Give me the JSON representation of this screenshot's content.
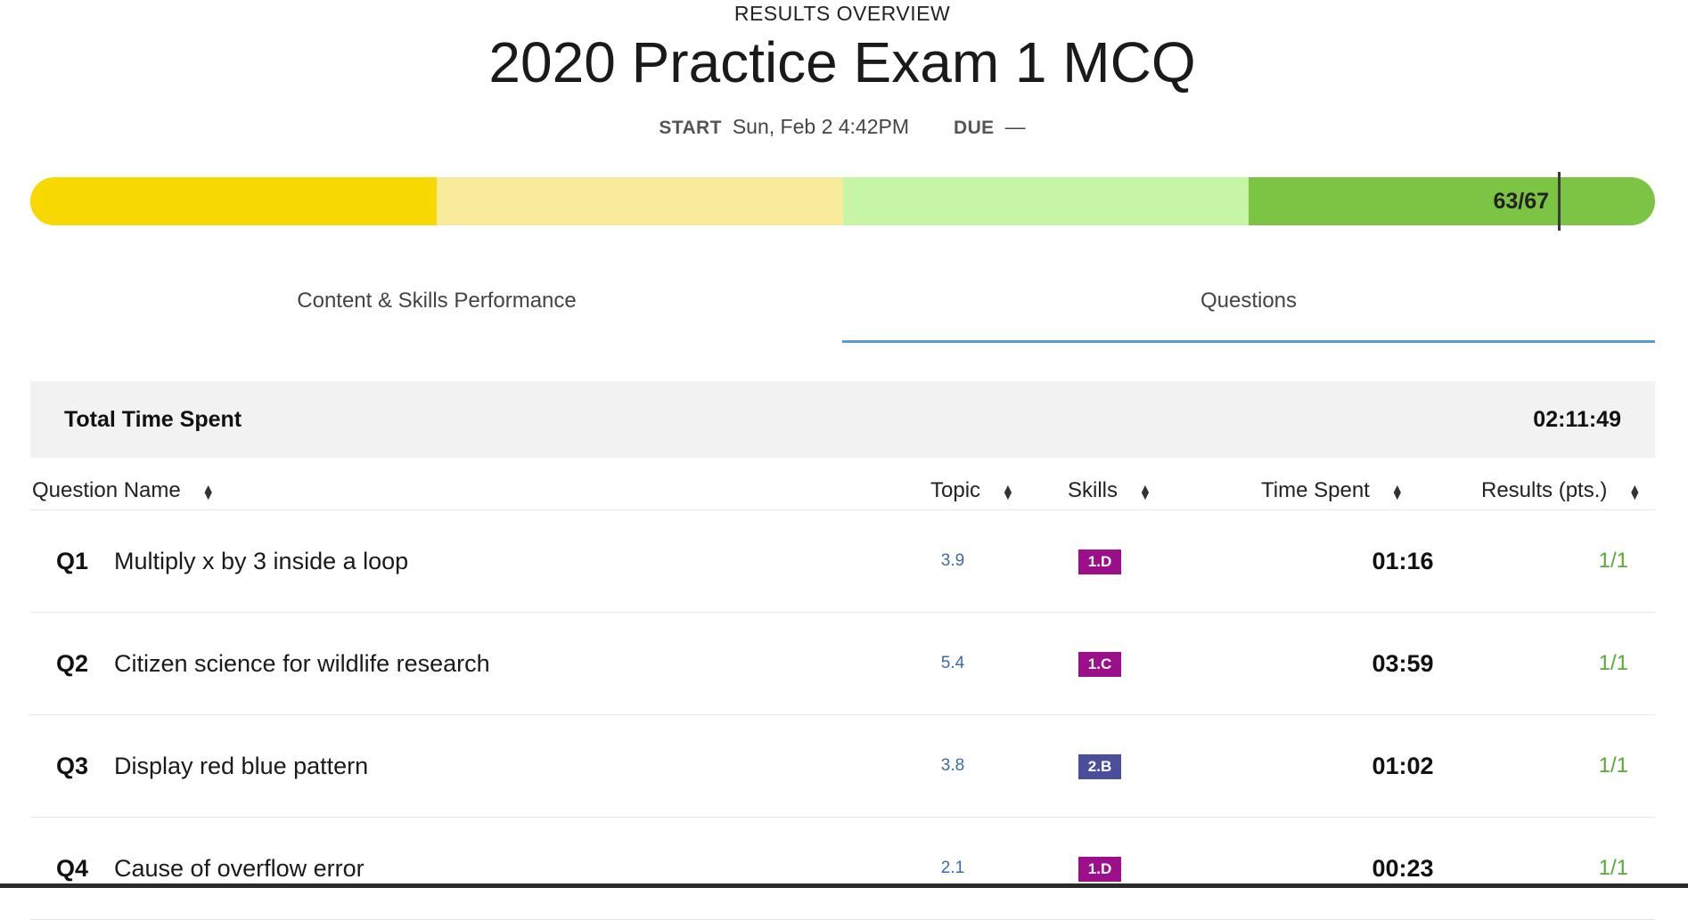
{
  "header": {
    "overline": "RESULTS OVERVIEW",
    "title": "2020 Practice Exam 1 MCQ",
    "start_label": "START",
    "start_value": "Sun, Feb 2 4:42PM",
    "due_label": "DUE",
    "due_value": "—"
  },
  "score_bar": {
    "score_text": "63/67",
    "score_fraction": 0.94,
    "segment_colors": [
      "#f7d800",
      "#f8ec9c",
      "#c6f5a6",
      "#7cc443"
    ]
  },
  "tabs": [
    {
      "label": "Content & Skills Performance",
      "active": false
    },
    {
      "label": "Questions",
      "active": true
    }
  ],
  "summary": {
    "label": "Total Time Spent",
    "value": "02:11:49"
  },
  "table": {
    "columns": {
      "question": "Question Name",
      "topic": "Topic",
      "skills": "Skills",
      "time": "Time Spent",
      "results": "Results (pts.)"
    },
    "rows": [
      {
        "num": "Q1",
        "title": "Multiply x by 3 inside a loop",
        "topic": "3.9",
        "skill": "1.D",
        "skill_color": "#9c0f8a",
        "time": "01:16",
        "result": "1/1"
      },
      {
        "num": "Q2",
        "title": "Citizen science for wildlife research",
        "topic": "5.4",
        "skill": "1.C",
        "skill_color": "#9c0f8a",
        "time": "03:59",
        "result": "1/1"
      },
      {
        "num": "Q3",
        "title": "Display red blue pattern",
        "topic": "3.8",
        "skill": "2.B",
        "skill_color": "#4a4f9c",
        "time": "01:02",
        "result": "1/1"
      },
      {
        "num": "Q4",
        "title": "Cause of overflow error",
        "topic": "2.1",
        "skill": "1.D",
        "skill_color": "#9c0f8a",
        "time": "00:23",
        "result": "1/1"
      }
    ]
  },
  "icons": {
    "sort": "sort-updown-icon"
  }
}
